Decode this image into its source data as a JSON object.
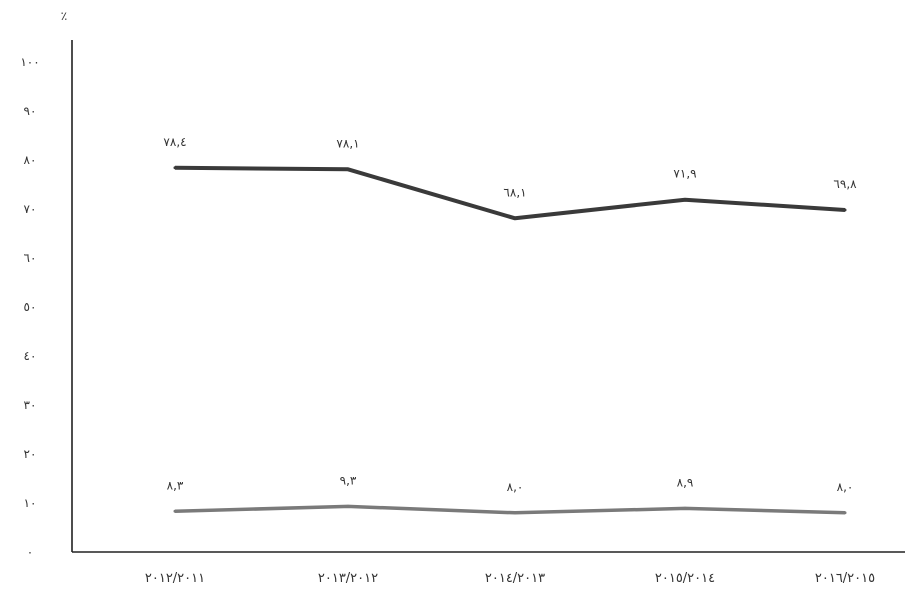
{
  "chart_data": {
    "type": "line",
    "title": "",
    "unit_label": "٪",
    "xlabel": "",
    "ylabel": "",
    "categories": [
      "٢٠١٢/٢٠١١",
      "٢٠١٣/٢٠١٢",
      "٢٠١٤/٢٠١٣",
      "٢٠١٥/٢٠١٤",
      "٢٠١٦/٢٠١٥"
    ],
    "ylim": [
      0,
      100
    ],
    "yticks": [
      0,
      10,
      20,
      30,
      40,
      50,
      60,
      70,
      80,
      90,
      100
    ],
    "ytick_labels": [
      "٠",
      "١٠",
      "٢٠",
      "٣٠",
      "٤٠",
      "٥٠",
      "٦٠",
      "٧٠",
      "٨٠",
      "٩٠",
      "١٠٠"
    ],
    "grid": false,
    "series": [
      {
        "values": [
          78.4,
          78.1,
          68.1,
          71.9,
          69.8
        ],
        "labels": [
          "٧٨,٤",
          "٧٨,١",
          "٦٨,١",
          "٧١,٩",
          "٦٩,٨"
        ],
        "color": "#3a3a3a"
      },
      {
        "values": [
          8.3,
          9.3,
          8.0,
          8.9,
          8.0
        ],
        "labels": [
          "٨,٣",
          "٩,٣",
          "٨,٠",
          "٨,٩",
          "٨,٠"
        ],
        "color": "#7a7a7a"
      }
    ]
  }
}
